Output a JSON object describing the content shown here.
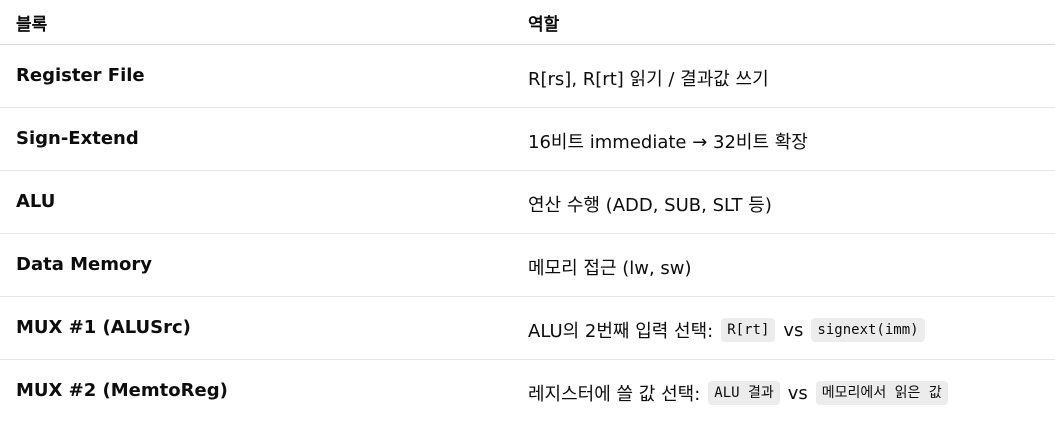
{
  "header": {
    "col1": "블록",
    "col2": "역할"
  },
  "rows": [
    {
      "block": "Register File",
      "role": "R[rs], R[rt] 읽기 / 결과값 쓰기"
    },
    {
      "block": "Sign-Extend",
      "role": "16비트 immediate → 32비트 확장"
    },
    {
      "block": "ALU",
      "role": "연산 수행 (ADD, SUB, SLT 등)"
    },
    {
      "block": "Data Memory",
      "role": "메모리 접근 (lw, sw)"
    },
    {
      "block": "MUX #1 (ALUSrc)",
      "role_prefix": "ALU의 2번째 입력 선택:",
      "code_a": "R[rt]",
      "vs": "vs",
      "code_b": "signext(imm)"
    },
    {
      "block": "MUX #2 (MemtoReg)",
      "role_prefix": "레지스터에 쓸 값 선택:",
      "code_a": "ALU 결과",
      "vs": "vs",
      "code_b": "메모리에서 읽은 값"
    }
  ]
}
